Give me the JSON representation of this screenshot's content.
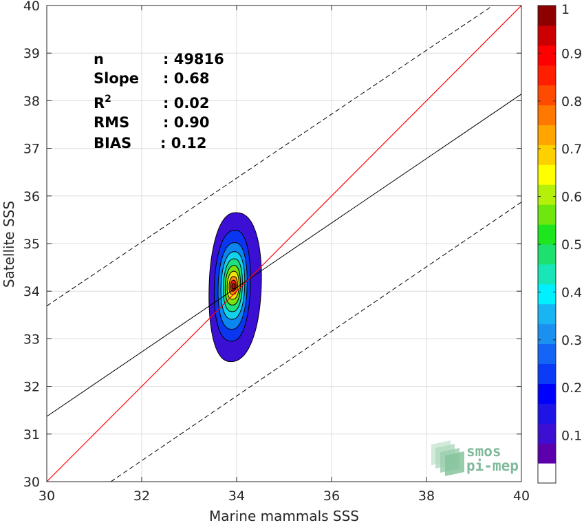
{
  "chart_data": {
    "type": "contour",
    "title": "",
    "xlabel": "Marine mammals SSS",
    "ylabel": "Satellite SSS",
    "xlim": [
      30,
      40
    ],
    "ylim": [
      30,
      40
    ],
    "xticks": [
      30,
      32,
      34,
      36,
      38,
      40
    ],
    "yticks": [
      30,
      31,
      32,
      33,
      34,
      35,
      36,
      37,
      38,
      39,
      40
    ],
    "grid": true,
    "stats": [
      {
        "label": "n",
        "value": ": 49816"
      },
      {
        "label": "Slope",
        "value": ": 0.68"
      },
      {
        "label": "R",
        "sup": "2",
        "value": ": 0.02"
      },
      {
        "label": "RMS",
        "value": ": 0.90"
      },
      {
        "label": "BIAS",
        "value": ": 0.12"
      }
    ],
    "lines": {
      "identity": {
        "x": [
          30,
          40
        ],
        "y": [
          30,
          40
        ],
        "color": "#ff0000"
      },
      "fit": {
        "x": [
          30,
          40
        ],
        "y": [
          31.37,
          38.14
        ],
        "color": "#000000"
      },
      "upper_bound": {
        "x": [
          30,
          39.4
        ],
        "y": [
          33.69,
          40
        ],
        "color": "#000000",
        "style": "dashed"
      },
      "lower_bound": {
        "x": [
          31.35,
          40
        ],
        "y": [
          30,
          35.87
        ],
        "color": "#000000",
        "style": "dashed"
      }
    },
    "density_contours": {
      "center": [
        33.93,
        34.1
      ],
      "levels": [
        {
          "level": 0.05,
          "x_range": [
            33.42,
            34.52
          ],
          "y_range": [
            32.52,
            35.65
          ],
          "color": "#3b0fd4"
        },
        {
          "level": 0.2,
          "x_range": [
            33.53,
            34.29
          ],
          "y_range": [
            32.95,
            35.28
          ],
          "color": "#0a36f0"
        },
        {
          "level": 0.3,
          "x_range": [
            33.61,
            34.22
          ],
          "y_range": [
            33.2,
            35.02
          ],
          "color": "#0b86f0"
        },
        {
          "level": 0.4,
          "x_range": [
            33.67,
            34.17
          ],
          "y_range": [
            33.41,
            34.83
          ],
          "color": "#13d2ee"
        },
        {
          "level": 0.5,
          "x_range": [
            33.72,
            34.12
          ],
          "y_range": [
            33.57,
            34.68
          ],
          "color": "#1ee07e"
        },
        {
          "level": 0.6,
          "x_range": [
            33.76,
            34.08
          ],
          "y_range": [
            33.71,
            34.54
          ],
          "color": "#7ce30d"
        },
        {
          "level": 0.7,
          "x_range": [
            33.8,
            34.05
          ],
          "y_range": [
            33.83,
            34.42
          ],
          "color": "#f2e50e"
        },
        {
          "level": 0.8,
          "x_range": [
            33.84,
            34.02
          ],
          "y_range": [
            33.93,
            34.31
          ],
          "color": "#ff8a00"
        },
        {
          "level": 0.9,
          "x_range": [
            33.87,
            33.99
          ],
          "y_range": [
            34.0,
            34.23
          ],
          "color": "#ee1b15"
        },
        {
          "level": 0.97,
          "x_range": [
            33.9,
            33.97
          ],
          "y_range": [
            34.05,
            34.16
          ],
          "color": "#b01010"
        }
      ]
    },
    "colorbar": {
      "min": 0,
      "max": 1,
      "tick_labels": [
        "0.1",
        "0.2",
        "0.3",
        "0.4",
        "0.5",
        "0.6",
        "0.7",
        "0.8",
        "0.9",
        "1"
      ],
      "tick_values": [
        0.1,
        0.2,
        0.3,
        0.4,
        0.5,
        0.6,
        0.7,
        0.8,
        0.9,
        1
      ],
      "colors": [
        "#ffffff",
        "#5c00ad",
        "#3d0fd2",
        "#1f14e6",
        "#0000ff",
        "#0a3cf5",
        "#1464f5",
        "#1a90f0",
        "#19b4f2",
        "#00f0ff",
        "#18e6b9",
        "#1de06e",
        "#1ee61e",
        "#6fe60e",
        "#b4f00a",
        "#ffff00",
        "#ffd000",
        "#ffa500",
        "#ff7800",
        "#ff4b00",
        "#ff1e00",
        "#ff0000",
        "#cc0000",
        "#8c0000"
      ]
    }
  },
  "logo": {
    "line1": "smos",
    "line2": "pi-mep"
  }
}
